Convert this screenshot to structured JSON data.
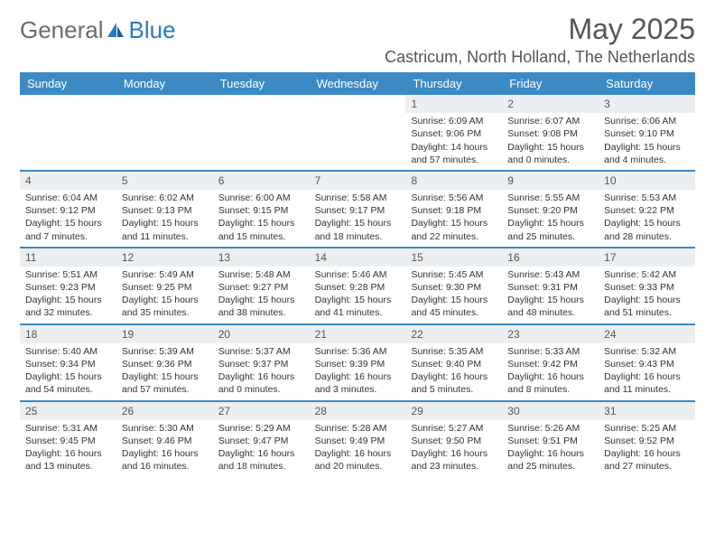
{
  "logo": {
    "part1": "General",
    "part2": "Blue"
  },
  "title": "May 2025",
  "location": "Castricum, North Holland, The Netherlands",
  "colors": {
    "header_bg": "#3b8ac4",
    "header_text": "#ffffff",
    "daynum_bg": "#eceff1",
    "border": "#3b8ac4",
    "logo_gray": "#6b6b6b",
    "logo_blue": "#2a7bbf"
  },
  "day_headers": [
    "Sunday",
    "Monday",
    "Tuesday",
    "Wednesday",
    "Thursday",
    "Friday",
    "Saturday"
  ],
  "weeks": [
    [
      {
        "n": "",
        "rise": "",
        "set": "",
        "day": ""
      },
      {
        "n": "",
        "rise": "",
        "set": "",
        "day": ""
      },
      {
        "n": "",
        "rise": "",
        "set": "",
        "day": ""
      },
      {
        "n": "",
        "rise": "",
        "set": "",
        "day": ""
      },
      {
        "n": "1",
        "rise": "Sunrise: 6:09 AM",
        "set": "Sunset: 9:06 PM",
        "day": "Daylight: 14 hours and 57 minutes."
      },
      {
        "n": "2",
        "rise": "Sunrise: 6:07 AM",
        "set": "Sunset: 9:08 PM",
        "day": "Daylight: 15 hours and 0 minutes."
      },
      {
        "n": "3",
        "rise": "Sunrise: 6:06 AM",
        "set": "Sunset: 9:10 PM",
        "day": "Daylight: 15 hours and 4 minutes."
      }
    ],
    [
      {
        "n": "4",
        "rise": "Sunrise: 6:04 AM",
        "set": "Sunset: 9:12 PM",
        "day": "Daylight: 15 hours and 7 minutes."
      },
      {
        "n": "5",
        "rise": "Sunrise: 6:02 AM",
        "set": "Sunset: 9:13 PM",
        "day": "Daylight: 15 hours and 11 minutes."
      },
      {
        "n": "6",
        "rise": "Sunrise: 6:00 AM",
        "set": "Sunset: 9:15 PM",
        "day": "Daylight: 15 hours and 15 minutes."
      },
      {
        "n": "7",
        "rise": "Sunrise: 5:58 AM",
        "set": "Sunset: 9:17 PM",
        "day": "Daylight: 15 hours and 18 minutes."
      },
      {
        "n": "8",
        "rise": "Sunrise: 5:56 AM",
        "set": "Sunset: 9:18 PM",
        "day": "Daylight: 15 hours and 22 minutes."
      },
      {
        "n": "9",
        "rise": "Sunrise: 5:55 AM",
        "set": "Sunset: 9:20 PM",
        "day": "Daylight: 15 hours and 25 minutes."
      },
      {
        "n": "10",
        "rise": "Sunrise: 5:53 AM",
        "set": "Sunset: 9:22 PM",
        "day": "Daylight: 15 hours and 28 minutes."
      }
    ],
    [
      {
        "n": "11",
        "rise": "Sunrise: 5:51 AM",
        "set": "Sunset: 9:23 PM",
        "day": "Daylight: 15 hours and 32 minutes."
      },
      {
        "n": "12",
        "rise": "Sunrise: 5:49 AM",
        "set": "Sunset: 9:25 PM",
        "day": "Daylight: 15 hours and 35 minutes."
      },
      {
        "n": "13",
        "rise": "Sunrise: 5:48 AM",
        "set": "Sunset: 9:27 PM",
        "day": "Daylight: 15 hours and 38 minutes."
      },
      {
        "n": "14",
        "rise": "Sunrise: 5:46 AM",
        "set": "Sunset: 9:28 PM",
        "day": "Daylight: 15 hours and 41 minutes."
      },
      {
        "n": "15",
        "rise": "Sunrise: 5:45 AM",
        "set": "Sunset: 9:30 PM",
        "day": "Daylight: 15 hours and 45 minutes."
      },
      {
        "n": "16",
        "rise": "Sunrise: 5:43 AM",
        "set": "Sunset: 9:31 PM",
        "day": "Daylight: 15 hours and 48 minutes."
      },
      {
        "n": "17",
        "rise": "Sunrise: 5:42 AM",
        "set": "Sunset: 9:33 PM",
        "day": "Daylight: 15 hours and 51 minutes."
      }
    ],
    [
      {
        "n": "18",
        "rise": "Sunrise: 5:40 AM",
        "set": "Sunset: 9:34 PM",
        "day": "Daylight: 15 hours and 54 minutes."
      },
      {
        "n": "19",
        "rise": "Sunrise: 5:39 AM",
        "set": "Sunset: 9:36 PM",
        "day": "Daylight: 15 hours and 57 minutes."
      },
      {
        "n": "20",
        "rise": "Sunrise: 5:37 AM",
        "set": "Sunset: 9:37 PM",
        "day": "Daylight: 16 hours and 0 minutes."
      },
      {
        "n": "21",
        "rise": "Sunrise: 5:36 AM",
        "set": "Sunset: 9:39 PM",
        "day": "Daylight: 16 hours and 3 minutes."
      },
      {
        "n": "22",
        "rise": "Sunrise: 5:35 AM",
        "set": "Sunset: 9:40 PM",
        "day": "Daylight: 16 hours and 5 minutes."
      },
      {
        "n": "23",
        "rise": "Sunrise: 5:33 AM",
        "set": "Sunset: 9:42 PM",
        "day": "Daylight: 16 hours and 8 minutes."
      },
      {
        "n": "24",
        "rise": "Sunrise: 5:32 AM",
        "set": "Sunset: 9:43 PM",
        "day": "Daylight: 16 hours and 11 minutes."
      }
    ],
    [
      {
        "n": "25",
        "rise": "Sunrise: 5:31 AM",
        "set": "Sunset: 9:45 PM",
        "day": "Daylight: 16 hours and 13 minutes."
      },
      {
        "n": "26",
        "rise": "Sunrise: 5:30 AM",
        "set": "Sunset: 9:46 PM",
        "day": "Daylight: 16 hours and 16 minutes."
      },
      {
        "n": "27",
        "rise": "Sunrise: 5:29 AM",
        "set": "Sunset: 9:47 PM",
        "day": "Daylight: 16 hours and 18 minutes."
      },
      {
        "n": "28",
        "rise": "Sunrise: 5:28 AM",
        "set": "Sunset: 9:49 PM",
        "day": "Daylight: 16 hours and 20 minutes."
      },
      {
        "n": "29",
        "rise": "Sunrise: 5:27 AM",
        "set": "Sunset: 9:50 PM",
        "day": "Daylight: 16 hours and 23 minutes."
      },
      {
        "n": "30",
        "rise": "Sunrise: 5:26 AM",
        "set": "Sunset: 9:51 PM",
        "day": "Daylight: 16 hours and 25 minutes."
      },
      {
        "n": "31",
        "rise": "Sunrise: 5:25 AM",
        "set": "Sunset: 9:52 PM",
        "day": "Daylight: 16 hours and 27 minutes."
      }
    ]
  ]
}
